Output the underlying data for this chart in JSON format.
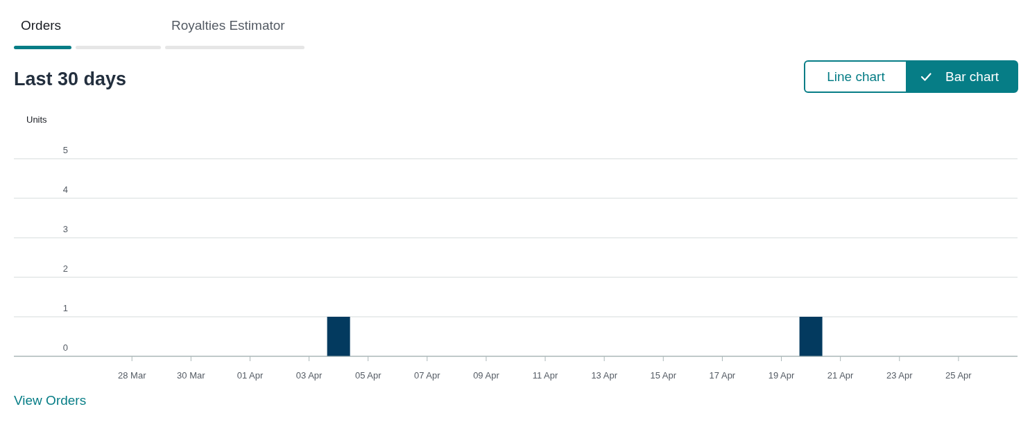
{
  "chart_data": {
    "type": "bar",
    "title": "Last 30 days",
    "ylabel": "Units",
    "x": [
      "--03-27",
      "--03-28",
      "--03-29",
      "--03-30",
      "--03-31",
      "--04-01",
      "--04-02",
      "--04-03",
      "--04-04",
      "--04-05",
      "--04-06",
      "--04-07",
      "--04-08",
      "--04-09",
      "--04-10",
      "--04-11",
      "--04-12",
      "--04-13",
      "--04-14",
      "--04-15",
      "--04-16",
      "--04-17",
      "--04-18",
      "--04-19",
      "--04-20",
      "--04-21",
      "--04-22",
      "--04-23",
      "--04-24",
      "--04-25"
    ],
    "values": [
      0,
      0,
      0,
      0,
      0,
      0,
      0,
      0,
      1,
      0,
      0,
      0,
      0,
      0,
      0,
      0,
      0,
      0,
      0,
      0,
      0,
      0,
      0,
      0,
      1,
      0,
      0,
      0,
      0,
      0
    ],
    "color": "#033a5f",
    "xlim": [
      "--03-24",
      "--04-27"
    ],
    "xticks": [
      {
        "value": "--03-28",
        "label": "28 Mar"
      },
      {
        "value": "--03-30",
        "label": "30 Mar"
      },
      {
        "value": "--04-01",
        "label": "01 Apr"
      },
      {
        "value": "--04-03",
        "label": "03 Apr"
      },
      {
        "value": "--04-05",
        "label": "05 Apr"
      },
      {
        "value": "--04-07",
        "label": "07 Apr"
      },
      {
        "value": "--04-09",
        "label": "09 Apr"
      },
      {
        "value": "--04-11",
        "label": "11 Apr"
      },
      {
        "value": "--04-13",
        "label": "13 Apr"
      },
      {
        "value": "--04-15",
        "label": "15 Apr"
      },
      {
        "value": "--04-17",
        "label": "17 Apr"
      },
      {
        "value": "--04-19",
        "label": "19 Apr"
      },
      {
        "value": "--04-21",
        "label": "21 Apr"
      },
      {
        "value": "--04-23",
        "label": "23 Apr"
      },
      {
        "value": "--04-25",
        "label": "25 Apr"
      }
    ],
    "ylim": [
      0,
      5
    ],
    "yticks": [
      0,
      1,
      2,
      3,
      4,
      5
    ],
    "grid": "y",
    "annotations": [
      "Orders",
      "Royalties Estimator",
      "Line chart",
      "Bar chart",
      "View Orders"
    ]
  }
}
